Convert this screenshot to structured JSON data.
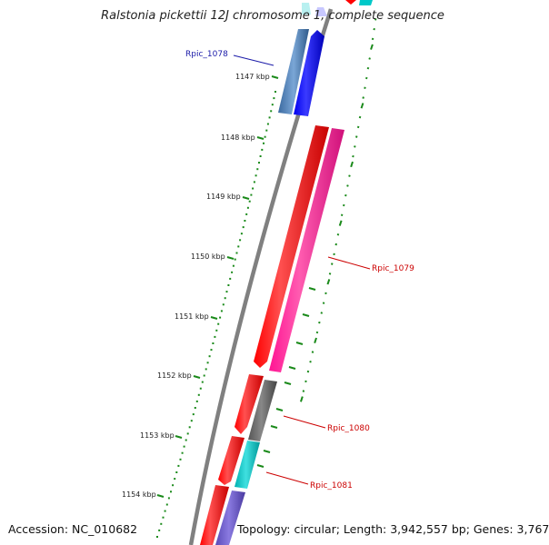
{
  "title": "Ralstonia pickettii 12J chromosome 1, complete sequence",
  "footer": {
    "accession": "Accession: NC_010682",
    "summary": "Topology: circular; Length: 3,942,557 bp; Genes: 3,767"
  },
  "scale_ticks": [
    "1147 kbp",
    "1148 kbp",
    "1149 kbp",
    "1150 kbp",
    "1151 kbp",
    "1152 kbp",
    "1153 kbp",
    "1154 kbp"
  ],
  "gene_labels": [
    {
      "id": "Rpic_1078",
      "color": "#1a1aa8"
    },
    {
      "id": "Rpic_1079",
      "color": "#cc0000"
    },
    {
      "id": "Rpic_1080",
      "color": "#cc0000"
    },
    {
      "id": "Rpic_1081",
      "color": "#cc0000"
    }
  ],
  "colors": {
    "backbone": "#808080",
    "cds_red": "#ff0000",
    "cds_pink": "#ff1493",
    "cds_blue": "#0000ee",
    "cds_steel": "#4a7ab0",
    "cds_gray": "#666666",
    "cds_cyan": "#00c8c8",
    "cds_purple": "#6a5acd",
    "tick_green": "#1a8a1a"
  }
}
